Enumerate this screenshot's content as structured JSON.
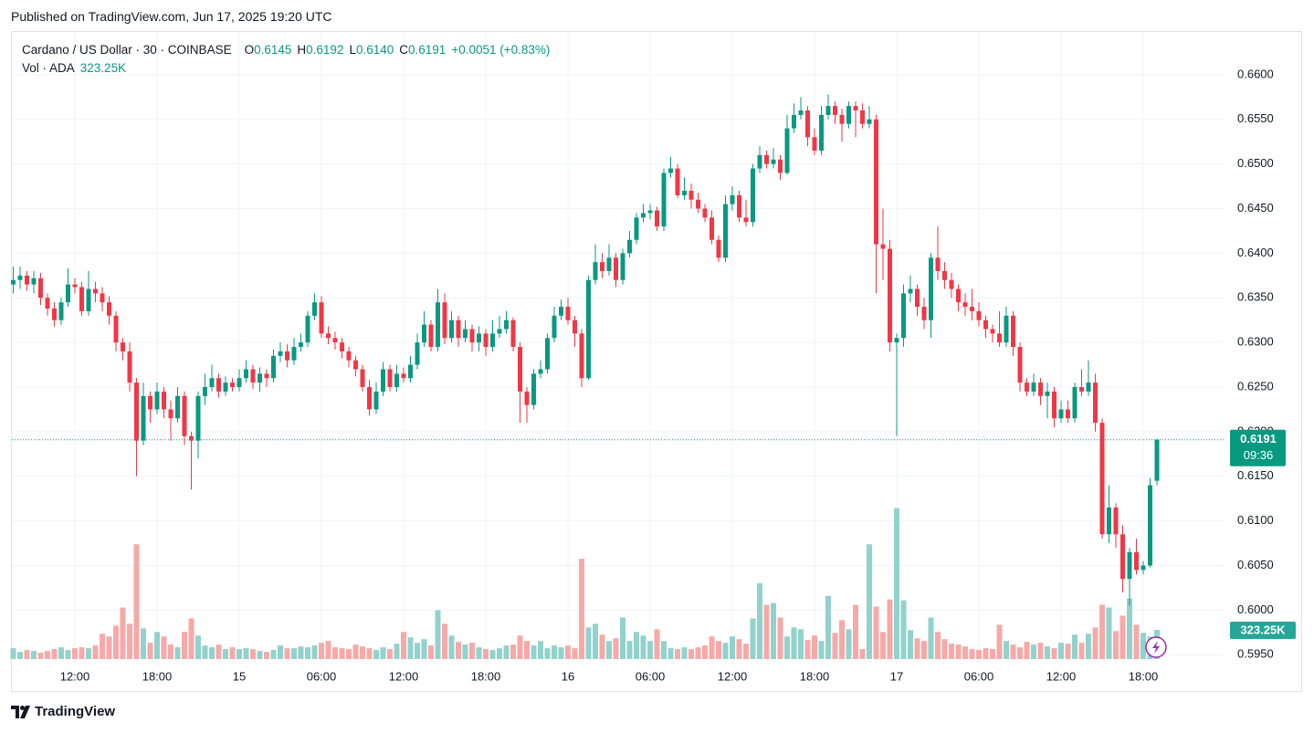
{
  "header": "Published on TradingView.com, Jun 17, 2025 19:20 UTC",
  "footer": "TradingView",
  "chart_data": {
    "type": "candlestick",
    "legend": {
      "symbol": "Cardano / US Dollar · 30 · COINBASE",
      "items": [
        {
          "key": "O",
          "value": "0.6145"
        },
        {
          "key": "H",
          "value": "0.6192"
        },
        {
          "key": "L",
          "value": "0.6140"
        },
        {
          "key": "C",
          "value": "0.6191"
        }
      ],
      "change": "+0.0051 (+0.83%)",
      "volume_name": "Vol · ADA",
      "volume_value": "323.25K"
    },
    "up_color": "#089981",
    "down_color": "#f23645",
    "volume_up_color": "#92d2cc",
    "volume_down_color": "#f7a9a7",
    "grid": true,
    "ylim": [
      0.5937,
      0.6648
    ],
    "yticks": [
      {
        "value": 0.595,
        "label": "0.5950"
      },
      {
        "value": 0.6,
        "label": "0.6000"
      },
      {
        "value": 0.605,
        "label": "0.6050"
      },
      {
        "value": 0.61,
        "label": "0.6100"
      },
      {
        "value": 0.615,
        "label": "0.6150"
      },
      {
        "value": 0.62,
        "label": "0.6200"
      },
      {
        "value": 0.625,
        "label": "0.6250"
      },
      {
        "value": 0.63,
        "label": "0.6300"
      },
      {
        "value": 0.635,
        "label": "0.6350"
      },
      {
        "value": 0.64,
        "label": "0.6400"
      },
      {
        "value": 0.645,
        "label": "0.6450"
      },
      {
        "value": 0.65,
        "label": "0.6500"
      },
      {
        "value": 0.655,
        "label": "0.6550"
      },
      {
        "value": 0.66,
        "label": "0.6600"
      }
    ],
    "vlim": [
      0,
      6940000
    ],
    "last_price": {
      "value": 0.6191,
      "label": "0.6191",
      "countdown": "09:36"
    },
    "last_volume": {
      "value": 323250,
      "label": "323.25K"
    },
    "categories": [
      null,
      null,
      null,
      null,
      null,
      null,
      null,
      null,
      null,
      "12:00",
      null,
      null,
      null,
      null,
      null,
      null,
      null,
      null,
      null,
      null,
      null,
      "18:00",
      null,
      null,
      null,
      null,
      null,
      null,
      null,
      null,
      null,
      null,
      null,
      "15",
      null,
      null,
      null,
      null,
      null,
      null,
      null,
      null,
      null,
      null,
      null,
      "06:00",
      null,
      null,
      null,
      null,
      null,
      null,
      null,
      null,
      null,
      null,
      null,
      "12:00",
      null,
      null,
      null,
      null,
      null,
      null,
      null,
      null,
      null,
      null,
      null,
      "18:00",
      null,
      null,
      null,
      null,
      null,
      null,
      null,
      null,
      null,
      null,
      null,
      "16",
      null,
      null,
      null,
      null,
      null,
      null,
      null,
      null,
      null,
      null,
      null,
      "06:00",
      null,
      null,
      null,
      null,
      null,
      null,
      null,
      null,
      null,
      null,
      null,
      "12:00",
      null,
      null,
      null,
      null,
      null,
      null,
      null,
      null,
      null,
      null,
      null,
      "18:00",
      null,
      null,
      null,
      null,
      null,
      null,
      null,
      null,
      null,
      null,
      null,
      "17",
      null,
      null,
      null,
      null,
      null,
      null,
      null,
      null,
      null,
      null,
      null,
      "06:00",
      null,
      null,
      null,
      null,
      null,
      null,
      null,
      null,
      null,
      null,
      null,
      "12:00",
      null,
      null,
      null,
      null,
      null,
      null,
      null,
      null,
      null,
      null,
      null,
      "18:00",
      null,
      null
    ],
    "candles": [
      [
        0.6365,
        0.6385,
        0.6355,
        0.637
      ],
      [
        0.637,
        0.6385,
        0.636,
        0.6375
      ],
      [
        0.6375,
        0.638,
        0.6358,
        0.6365
      ],
      [
        0.6365,
        0.638,
        0.6355,
        0.6372
      ],
      [
        0.6372,
        0.6378,
        0.6342,
        0.635
      ],
      [
        0.635,
        0.6355,
        0.633,
        0.6338
      ],
      [
        0.6338,
        0.6345,
        0.6318,
        0.6325
      ],
      [
        0.6325,
        0.635,
        0.632,
        0.6345
      ],
      [
        0.6345,
        0.6383,
        0.634,
        0.6365
      ],
      [
        0.6365,
        0.6372,
        0.6355,
        0.6362
      ],
      [
        0.6362,
        0.6368,
        0.633,
        0.6335
      ],
      [
        0.6335,
        0.638,
        0.633,
        0.636
      ],
      [
        0.636,
        0.6368,
        0.6345,
        0.6355
      ],
      [
        0.6355,
        0.6362,
        0.6335,
        0.6345
      ],
      [
        0.6345,
        0.6352,
        0.632,
        0.633
      ],
      [
        0.633,
        0.6335,
        0.629,
        0.63
      ],
      [
        0.63,
        0.6305,
        0.628,
        0.629
      ],
      [
        0.629,
        0.63,
        0.6245,
        0.6255
      ],
      [
        0.6255,
        0.626,
        0.615,
        0.619
      ],
      [
        0.619,
        0.6255,
        0.6185,
        0.624
      ],
      [
        0.624,
        0.6245,
        0.621,
        0.6225
      ],
      [
        0.6225,
        0.6255,
        0.622,
        0.6245
      ],
      [
        0.6245,
        0.625,
        0.6215,
        0.6225
      ],
      [
        0.6225,
        0.6235,
        0.619,
        0.6215
      ],
      [
        0.6215,
        0.625,
        0.621,
        0.624
      ],
      [
        0.624,
        0.6245,
        0.6185,
        0.6195
      ],
      [
        0.6195,
        0.62,
        0.6135,
        0.619
      ],
      [
        0.619,
        0.6245,
        0.617,
        0.624
      ],
      [
        0.624,
        0.6265,
        0.623,
        0.625
      ],
      [
        0.625,
        0.6275,
        0.6245,
        0.626
      ],
      [
        0.626,
        0.6265,
        0.6238,
        0.6245
      ],
      [
        0.6245,
        0.6262,
        0.624,
        0.6255
      ],
      [
        0.6255,
        0.626,
        0.6245,
        0.625
      ],
      [
        0.625,
        0.627,
        0.6245,
        0.626
      ],
      [
        0.626,
        0.628,
        0.6255,
        0.627
      ],
      [
        0.627,
        0.6275,
        0.6248,
        0.6255
      ],
      [
        0.6255,
        0.6272,
        0.6245,
        0.6265
      ],
      [
        0.6265,
        0.627,
        0.625,
        0.626
      ],
      [
        0.626,
        0.6292,
        0.6255,
        0.6285
      ],
      [
        0.6285,
        0.63,
        0.6278,
        0.629
      ],
      [
        0.629,
        0.6298,
        0.6272,
        0.628
      ],
      [
        0.628,
        0.6305,
        0.6275,
        0.6295
      ],
      [
        0.6295,
        0.631,
        0.629,
        0.63
      ],
      [
        0.63,
        0.6335,
        0.6295,
        0.633
      ],
      [
        0.633,
        0.6355,
        0.6325,
        0.6345
      ],
      [
        0.6345,
        0.6352,
        0.6305,
        0.631
      ],
      [
        0.631,
        0.6318,
        0.6298,
        0.6305
      ],
      [
        0.6305,
        0.6312,
        0.6292,
        0.63
      ],
      [
        0.63,
        0.6305,
        0.6282,
        0.629
      ],
      [
        0.629,
        0.6295,
        0.6272,
        0.628
      ],
      [
        0.628,
        0.6285,
        0.6262,
        0.627
      ],
      [
        0.627,
        0.6275,
        0.6245,
        0.625
      ],
      [
        0.625,
        0.6258,
        0.6218,
        0.6225
      ],
      [
        0.6225,
        0.6255,
        0.622,
        0.6245
      ],
      [
        0.6245,
        0.6278,
        0.624,
        0.627
      ],
      [
        0.627,
        0.6275,
        0.6245,
        0.625
      ],
      [
        0.625,
        0.6275,
        0.6245,
        0.6265
      ],
      [
        0.6265,
        0.6272,
        0.6255,
        0.626
      ],
      [
        0.626,
        0.6285,
        0.6255,
        0.6275
      ],
      [
        0.6275,
        0.631,
        0.627,
        0.63
      ],
      [
        0.63,
        0.6335,
        0.6295,
        0.632
      ],
      [
        0.632,
        0.6325,
        0.629,
        0.6295
      ],
      [
        0.6295,
        0.636,
        0.629,
        0.6345
      ],
      [
        0.6345,
        0.6355,
        0.6298,
        0.6305
      ],
      [
        0.6305,
        0.6335,
        0.63,
        0.6325
      ],
      [
        0.6325,
        0.633,
        0.6295,
        0.6305
      ],
      [
        0.6305,
        0.6325,
        0.63,
        0.6315
      ],
      [
        0.6315,
        0.632,
        0.629,
        0.63
      ],
      [
        0.63,
        0.6318,
        0.629,
        0.631
      ],
      [
        0.631,
        0.6315,
        0.6285,
        0.6295
      ],
      [
        0.6295,
        0.6325,
        0.629,
        0.631
      ],
      [
        0.631,
        0.633,
        0.6305,
        0.6315
      ],
      [
        0.6315,
        0.6335,
        0.631,
        0.6325
      ],
      [
        0.6325,
        0.6328,
        0.629,
        0.6295
      ],
      [
        0.6295,
        0.63,
        0.621,
        0.6245
      ],
      [
        0.6245,
        0.625,
        0.621,
        0.623
      ],
      [
        0.623,
        0.627,
        0.6225,
        0.6265
      ],
      [
        0.6265,
        0.628,
        0.626,
        0.627
      ],
      [
        0.627,
        0.631,
        0.6265,
        0.6305
      ],
      [
        0.6305,
        0.634,
        0.63,
        0.633
      ],
      [
        0.633,
        0.6348,
        0.6325,
        0.634
      ],
      [
        0.634,
        0.635,
        0.632,
        0.6325
      ],
      [
        0.6325,
        0.633,
        0.6295,
        0.631
      ],
      [
        0.631,
        0.6315,
        0.625,
        0.626
      ],
      [
        0.626,
        0.6375,
        0.6258,
        0.637
      ],
      [
        0.637,
        0.641,
        0.6365,
        0.639
      ],
      [
        0.639,
        0.64,
        0.6372,
        0.638
      ],
      [
        0.638,
        0.641,
        0.6375,
        0.6395
      ],
      [
        0.6395,
        0.64,
        0.6362,
        0.637
      ],
      [
        0.637,
        0.6405,
        0.6365,
        0.64
      ],
      [
        0.64,
        0.6425,
        0.6395,
        0.6415
      ],
      [
        0.6415,
        0.6445,
        0.641,
        0.644
      ],
      [
        0.644,
        0.6455,
        0.6435,
        0.6445
      ],
      [
        0.6445,
        0.6455,
        0.6438,
        0.6448
      ],
      [
        0.6448,
        0.6452,
        0.6425,
        0.643
      ],
      [
        0.643,
        0.6495,
        0.6425,
        0.649
      ],
      [
        0.649,
        0.6508,
        0.6485,
        0.6495
      ],
      [
        0.6495,
        0.65,
        0.6462,
        0.6465
      ],
      [
        0.6465,
        0.6485,
        0.646,
        0.647
      ],
      [
        0.647,
        0.6478,
        0.645,
        0.646
      ],
      [
        0.646,
        0.6468,
        0.6445,
        0.645
      ],
      [
        0.645,
        0.6455,
        0.6435,
        0.644
      ],
      [
        0.644,
        0.6448,
        0.641,
        0.6415
      ],
      [
        0.6415,
        0.642,
        0.639,
        0.6395
      ],
      [
        0.6395,
        0.6465,
        0.639,
        0.6455
      ],
      [
        0.6455,
        0.6475,
        0.6448,
        0.6465
      ],
      [
        0.6465,
        0.647,
        0.6435,
        0.644
      ],
      [
        0.644,
        0.646,
        0.643,
        0.6435
      ],
      [
        0.6435,
        0.65,
        0.643,
        0.6495
      ],
      [
        0.6495,
        0.652,
        0.649,
        0.651
      ],
      [
        0.651,
        0.6515,
        0.6495,
        0.65
      ],
      [
        0.65,
        0.6518,
        0.6495,
        0.6505
      ],
      [
        0.6505,
        0.651,
        0.6482,
        0.649
      ],
      [
        0.649,
        0.6555,
        0.6488,
        0.654
      ],
      [
        0.654,
        0.6568,
        0.6535,
        0.6555
      ],
      [
        0.6555,
        0.6575,
        0.655,
        0.656
      ],
      [
        0.656,
        0.6565,
        0.652,
        0.653
      ],
      [
        0.653,
        0.654,
        0.651,
        0.6515
      ],
      [
        0.6515,
        0.6565,
        0.651,
        0.6555
      ],
      [
        0.6555,
        0.6578,
        0.655,
        0.6565
      ],
      [
        0.6565,
        0.657,
        0.6545,
        0.6555
      ],
      [
        0.6555,
        0.6562,
        0.6525,
        0.6545
      ],
      [
        0.6545,
        0.657,
        0.654,
        0.6565
      ],
      [
        0.6565,
        0.657,
        0.653,
        0.656
      ],
      [
        0.656,
        0.6568,
        0.654,
        0.6545
      ],
      [
        0.6545,
        0.6565,
        0.654,
        0.655
      ],
      [
        0.655,
        0.6555,
        0.6355,
        0.641
      ],
      [
        0.641,
        0.645,
        0.637,
        0.6405
      ],
      [
        0.6405,
        0.6415,
        0.629,
        0.63
      ],
      [
        0.63,
        0.631,
        0.6195,
        0.6305
      ],
      [
        0.6305,
        0.6365,
        0.6295,
        0.6355
      ],
      [
        0.6355,
        0.6375,
        0.6345,
        0.636
      ],
      [
        0.636,
        0.6365,
        0.633,
        0.634
      ],
      [
        0.634,
        0.635,
        0.6315,
        0.6325
      ],
      [
        0.6325,
        0.64,
        0.6305,
        0.6395
      ],
      [
        0.6395,
        0.643,
        0.637,
        0.638
      ],
      [
        0.638,
        0.639,
        0.636,
        0.637
      ],
      [
        0.637,
        0.6378,
        0.635,
        0.636
      ],
      [
        0.636,
        0.6365,
        0.6335,
        0.6345
      ],
      [
        0.6345,
        0.6355,
        0.633,
        0.634
      ],
      [
        0.634,
        0.636,
        0.6325,
        0.6335
      ],
      [
        0.6335,
        0.6345,
        0.6318,
        0.6325
      ],
      [
        0.6325,
        0.633,
        0.6305,
        0.6315
      ],
      [
        0.6315,
        0.632,
        0.63,
        0.631
      ],
      [
        0.631,
        0.6335,
        0.6295,
        0.63
      ],
      [
        0.63,
        0.634,
        0.6295,
        0.633
      ],
      [
        0.633,
        0.6335,
        0.6285,
        0.6295
      ],
      [
        0.6295,
        0.63,
        0.6245,
        0.6255
      ],
      [
        0.6255,
        0.626,
        0.624,
        0.6245
      ],
      [
        0.6245,
        0.6265,
        0.624,
        0.6255
      ],
      [
        0.6255,
        0.626,
        0.623,
        0.624
      ],
      [
        0.624,
        0.6255,
        0.6215,
        0.6245
      ],
      [
        0.6245,
        0.625,
        0.6205,
        0.6215
      ],
      [
        0.6215,
        0.6235,
        0.621,
        0.6225
      ],
      [
        0.6225,
        0.6235,
        0.621,
        0.6215
      ],
      [
        0.6215,
        0.6255,
        0.621,
        0.625
      ],
      [
        0.625,
        0.627,
        0.624,
        0.6245
      ],
      [
        0.6245,
        0.628,
        0.624,
        0.6255
      ],
      [
        0.6255,
        0.6265,
        0.62,
        0.621
      ],
      [
        0.621,
        0.6215,
        0.608,
        0.6085
      ],
      [
        0.6085,
        0.614,
        0.6075,
        0.6115
      ],
      [
        0.6115,
        0.612,
        0.607,
        0.6085
      ],
      [
        0.6085,
        0.6095,
        0.602,
        0.6035
      ],
      [
        0.6035,
        0.607,
        0.6005,
        0.6065
      ],
      [
        0.6065,
        0.608,
        0.604,
        0.6045
      ],
      [
        0.6045,
        0.6055,
        0.604,
        0.605
      ],
      [
        0.605,
        0.6148,
        0.6048,
        0.614
      ],
      [
        0.6145,
        0.6192,
        0.614,
        0.6191
      ]
    ],
    "volumes": [
      120000,
      80000,
      100000,
      90000,
      70000,
      90000,
      110000,
      130000,
      100000,
      120000,
      130000,
      120000,
      150000,
      280000,
      250000,
      370000,
      570000,
      390000,
      1270000,
      340000,
      180000,
      300000,
      250000,
      160000,
      130000,
      300000,
      450000,
      260000,
      150000,
      130000,
      160000,
      110000,
      130000,
      110000,
      120000,
      110000,
      90000,
      80000,
      100000,
      150000,
      120000,
      120000,
      140000,
      130000,
      150000,
      180000,
      200000,
      130000,
      120000,
      110000,
      160000,
      140000,
      120000,
      100000,
      130000,
      110000,
      170000,
      300000,
      240000,
      180000,
      220000,
      150000,
      540000,
      390000,
      260000,
      190000,
      160000,
      180000,
      130000,
      110000,
      100000,
      120000,
      150000,
      160000,
      260000,
      200000,
      150000,
      200000,
      120000,
      150000,
      130000,
      150000,
      120000,
      1110000,
      350000,
      390000,
      270000,
      200000,
      230000,
      460000,
      200000,
      300000,
      260000,
      200000,
      330000,
      200000,
      120000,
      110000,
      130000,
      110000,
      130000,
      150000,
      250000,
      200000,
      180000,
      250000,
      220000,
      170000,
      450000,
      840000,
      600000,
      620000,
      460000,
      250000,
      350000,
      330000,
      210000,
      260000,
      200000,
      700000,
      290000,
      430000,
      330000,
      600000,
      110000,
      1270000,
      580000,
      300000,
      660000,
      1670000,
      650000,
      320000,
      230000,
      200000,
      460000,
      300000,
      220000,
      170000,
      160000,
      140000,
      110000,
      100000,
      120000,
      110000,
      380000,
      200000,
      160000,
      130000,
      190000,
      160000,
      180000,
      140000,
      120000,
      180000,
      170000,
      270000,
      180000,
      280000,
      350000,
      600000,
      570000,
      310000,
      480000,
      670000,
      380000,
      290000,
      250000,
      323250
    ]
  }
}
